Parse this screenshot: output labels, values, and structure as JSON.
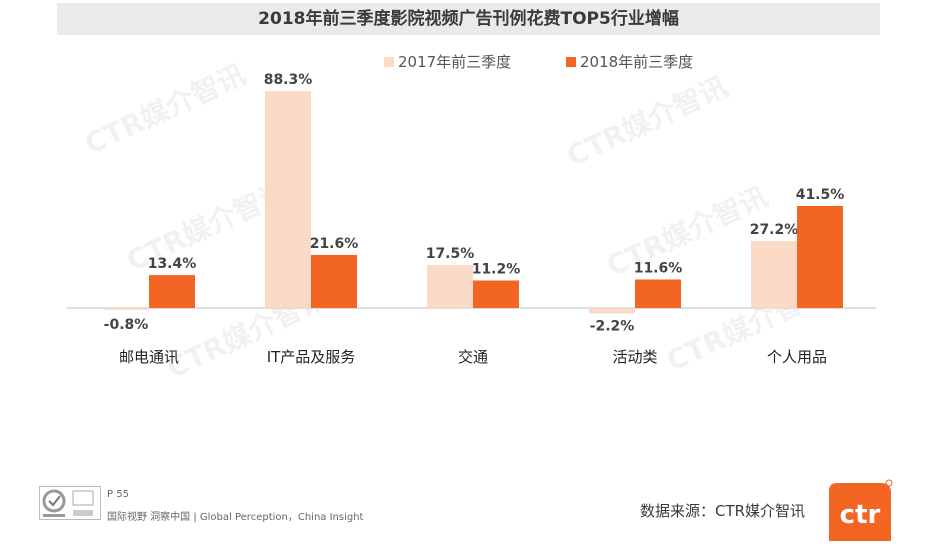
{
  "title": "2018年前三季度影院视频广告刊例花费TOP5行业增幅",
  "chart_data": {
    "type": "bar",
    "title": "2018年前三季度影院视频广告刊例花费TOP5行业增幅",
    "categories": [
      "邮电通讯",
      "IT产品及服务",
      "交通",
      "活动类",
      "个人用品"
    ],
    "series": [
      {
        "name": "2017年前三季度",
        "values": [
          -0.8,
          88.3,
          17.5,
          -2.2,
          27.2
        ],
        "labels": [
          "-0.8%",
          "88.3%",
          "17.5%",
          "-2.2%",
          "27.2%"
        ]
      },
      {
        "name": "2018年前三季度",
        "values": [
          13.4,
          21.6,
          11.2,
          11.6,
          41.5
        ],
        "labels": [
          "13.4%",
          "21.6%",
          "11.2%",
          "11.6%",
          "41.5%"
        ]
      }
    ],
    "xlabel": "",
    "ylabel": "",
    "grid": false,
    "legend": "top-right"
  },
  "colors": {
    "series_2017": "#fad9c6",
    "series_2018": "#f26522",
    "title_bg": "#eaeaea"
  },
  "watermark": "CTR媒介智讯",
  "footer": {
    "page": "P 55",
    "tagline": "国际视野  洞察中国 |  Global Perception，China Insight",
    "source": "数据来源：CTR媒介智讯",
    "logo_text": "ctr"
  }
}
